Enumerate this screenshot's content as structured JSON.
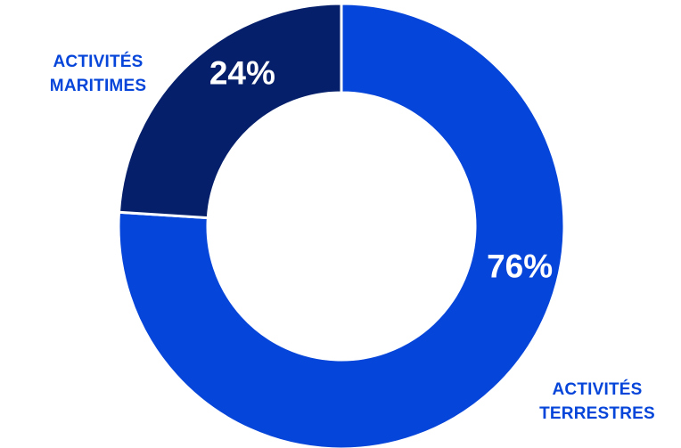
{
  "chart_data": {
    "type": "pie",
    "variant": "donut",
    "slices": [
      {
        "label": "ACTIVITÉS\nTERRESTRES",
        "value": 76,
        "display": "76%",
        "color": "#0645d9"
      },
      {
        "label": "ACTIVITÉS\nMARITIMES",
        "value": 24,
        "display": "24%",
        "color": "#051f6b"
      }
    ],
    "label_color": "#0645d9",
    "legend": false
  }
}
